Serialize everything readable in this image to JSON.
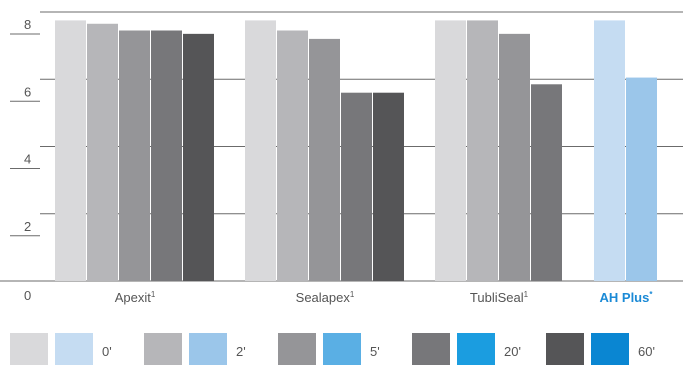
{
  "chart_data": {
    "type": "bar",
    "title": "",
    "xlabel": "",
    "ylabel": "",
    "ylim": [
      0,
      8
    ],
    "y_ticks": [
      "0",
      "2",
      "4",
      "6",
      "8"
    ],
    "grid": true,
    "legend_position": "bottom",
    "categories": [
      {
        "label": "Apexit",
        "sup": "1",
        "highlight": false
      },
      {
        "label": "Sealapex",
        "sup": "1",
        "highlight": false
      },
      {
        "label": "TubliSeal",
        "sup": "1",
        "highlight": false
      },
      {
        "label": "AH Plus",
        "sup": "*",
        "highlight": true
      }
    ],
    "series": [
      {
        "name": "0'",
        "values": [
          7.75,
          7.75,
          7.75,
          7.75
        ],
        "color": "#d9d9db",
        "highlight_color": "#c5dcf2"
      },
      {
        "name": "2'",
        "values": [
          7.65,
          7.45,
          7.75,
          6.05
        ],
        "color": "#b6b6b9",
        "highlight_color": "#9bc6ea"
      },
      {
        "name": "5'",
        "values": [
          7.45,
          7.2,
          7.35,
          null
        ],
        "color": "#959598",
        "highlight_color": "#5aafe4"
      },
      {
        "name": "20'",
        "values": [
          7.45,
          5.6,
          5.85,
          null
        ],
        "color": "#77777a",
        "highlight_color": "#1b9de0"
      },
      {
        "name": "60'",
        "values": [
          7.35,
          5.6,
          null,
          null
        ],
        "color": "#555557",
        "highlight_color": "#0a86d2"
      }
    ]
  }
}
